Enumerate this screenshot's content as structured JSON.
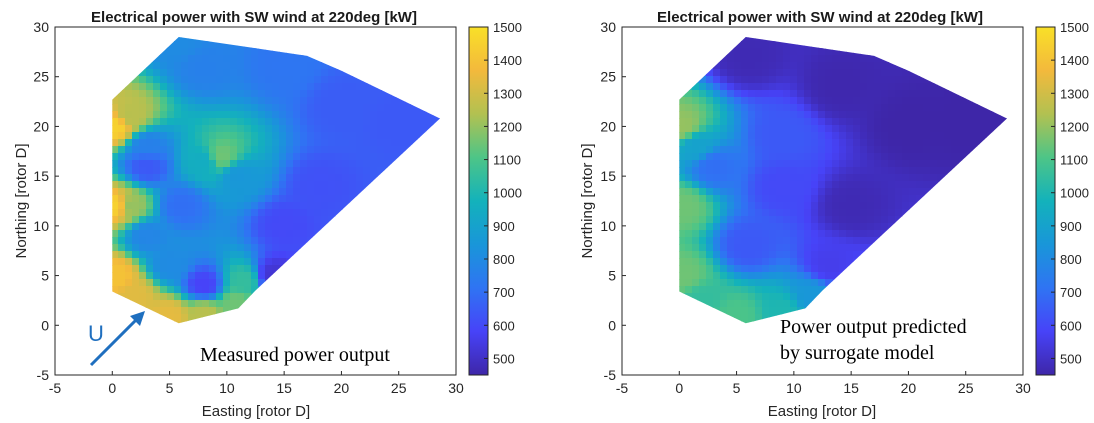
{
  "colors": {
    "colormap": [
      "#3e26a8",
      "#4743f8",
      "#2f74f3",
      "#1996d9",
      "#13b2bb",
      "#4dc587",
      "#b2c151",
      "#f3b93c",
      "#f9e028"
    ],
    "frame": "#262626",
    "arrow": "#1f6fbf"
  },
  "chart_data": [
    {
      "type": "heatmap",
      "title": "Electrical power with SW wind at 220deg [kW]",
      "xlabel": "Easting [rotor D]",
      "ylabel": "Northing [rotor D]",
      "xlim": [
        -5,
        30
      ],
      "ylim": [
        -5,
        30
      ],
      "xticks": [
        "-5",
        "0",
        "5",
        "10",
        "15",
        "20",
        "25",
        "30"
      ],
      "yticks": [
        "-5",
        "0",
        "5",
        "10",
        "15",
        "20",
        "25",
        "30"
      ],
      "colorbar": {
        "range": [
          450,
          1500
        ],
        "ticks": [
          "500",
          "600",
          "700",
          "800",
          "900",
          "1000",
          "1100",
          "1200",
          "1300",
          "1400",
          "1500"
        ]
      },
      "hull": [
        [
          0,
          22.7
        ],
        [
          5.8,
          29
        ],
        [
          17,
          27.1
        ],
        [
          20,
          25.6
        ],
        [
          28.6,
          20.8
        ],
        [
          12.5,
          3.5
        ],
        [
          11,
          1.7
        ],
        [
          5.8,
          0.2
        ],
        [
          0,
          3.4
        ]
      ],
      "field_points": [
        {
          "x": 0.3,
          "y": 20,
          "v": 1450
        },
        {
          "x": 0.3,
          "y": 12,
          "v": 1450
        },
        {
          "x": 0.3,
          "y": 5,
          "v": 1400
        },
        {
          "x": 1.5,
          "y": 21,
          "v": 1250
        },
        {
          "x": 1.5,
          "y": 12,
          "v": 1200
        },
        {
          "x": 3,
          "y": 18,
          "v": 760
        },
        {
          "x": 3,
          "y": 9,
          "v": 780
        },
        {
          "x": 2,
          "y": 3,
          "v": 1330
        },
        {
          "x": 5,
          "y": 1,
          "v": 1340
        },
        {
          "x": 8,
          "y": 1.2,
          "v": 1250
        },
        {
          "x": 10.8,
          "y": 2.2,
          "v": 1150
        },
        {
          "x": 11.5,
          "y": 4.5,
          "v": 1050
        },
        {
          "x": 5,
          "y": 6,
          "v": 800
        },
        {
          "x": 8,
          "y": 4,
          "v": 580
        },
        {
          "x": 3,
          "y": 16,
          "v": 640
        },
        {
          "x": 9.5,
          "y": 17,
          "v": 1150
        },
        {
          "x": 8,
          "y": 16.5,
          "v": 950
        },
        {
          "x": 11,
          "y": 15,
          "v": 850
        },
        {
          "x": 8,
          "y": 26,
          "v": 760
        },
        {
          "x": 5.8,
          "y": 28.5,
          "v": 800
        },
        {
          "x": 15,
          "y": 26,
          "v": 720
        },
        {
          "x": 20,
          "y": 22,
          "v": 650
        },
        {
          "x": 25,
          "y": 20.5,
          "v": 640
        },
        {
          "x": 15,
          "y": 10,
          "v": 600
        },
        {
          "x": 14,
          "y": 5,
          "v": 520
        },
        {
          "x": 18,
          "y": 14,
          "v": 620
        },
        {
          "x": 6,
          "y": 12,
          "v": 700
        }
      ],
      "annotation": "Measured power output",
      "arrow_label": "U"
    },
    {
      "type": "heatmap",
      "title": "Electrical power with SW wind at 220deg [kW]",
      "xlabel": "Easting [rotor D]",
      "ylabel": "Northing [rotor D]",
      "xlim": [
        -5,
        30
      ],
      "ylim": [
        -5,
        30
      ],
      "xticks": [
        "-5",
        "0",
        "5",
        "10",
        "15",
        "20",
        "25",
        "30"
      ],
      "yticks": [
        "-5",
        "0",
        "5",
        "10",
        "15",
        "20",
        "25",
        "30"
      ],
      "colorbar": {
        "range": [
          450,
          1500
        ],
        "ticks": [
          "500",
          "600",
          "700",
          "800",
          "900",
          "1000",
          "1100",
          "1200",
          "1300",
          "1400",
          "1500"
        ]
      },
      "hull": [
        [
          0,
          22.7
        ],
        [
          5.8,
          29
        ],
        [
          17,
          27.1
        ],
        [
          20,
          25.6
        ],
        [
          28.6,
          20.8
        ],
        [
          12.5,
          3.5
        ],
        [
          11,
          1.7
        ],
        [
          5.8,
          0.2
        ],
        [
          0,
          3.4
        ]
      ],
      "field_points": [
        {
          "x": 0.3,
          "y": 20,
          "v": 1200
        },
        {
          "x": 0.3,
          "y": 12,
          "v": 1150
        },
        {
          "x": 0.3,
          "y": 5,
          "v": 1150
        },
        {
          "x": 1.5,
          "y": 18,
          "v": 900
        },
        {
          "x": 3,
          "y": 16,
          "v": 700
        },
        {
          "x": 2,
          "y": 2.5,
          "v": 1050
        },
        {
          "x": 5,
          "y": 1,
          "v": 1100
        },
        {
          "x": 9,
          "y": 1.5,
          "v": 1000
        },
        {
          "x": 11.5,
          "y": 3,
          "v": 850
        },
        {
          "x": 6,
          "y": 8,
          "v": 640
        },
        {
          "x": 9,
          "y": 19,
          "v": 640
        },
        {
          "x": 9,
          "y": 14,
          "v": 600
        },
        {
          "x": 6,
          "y": 27,
          "v": 470
        },
        {
          "x": 14,
          "y": 24,
          "v": 460
        },
        {
          "x": 20,
          "y": 20,
          "v": 450
        },
        {
          "x": 15,
          "y": 12,
          "v": 470
        },
        {
          "x": 25,
          "y": 20.5,
          "v": 450
        },
        {
          "x": 13,
          "y": 6,
          "v": 560
        }
      ],
      "annotation": [
        "Power output predicted",
        "by surrogate model"
      ]
    }
  ]
}
